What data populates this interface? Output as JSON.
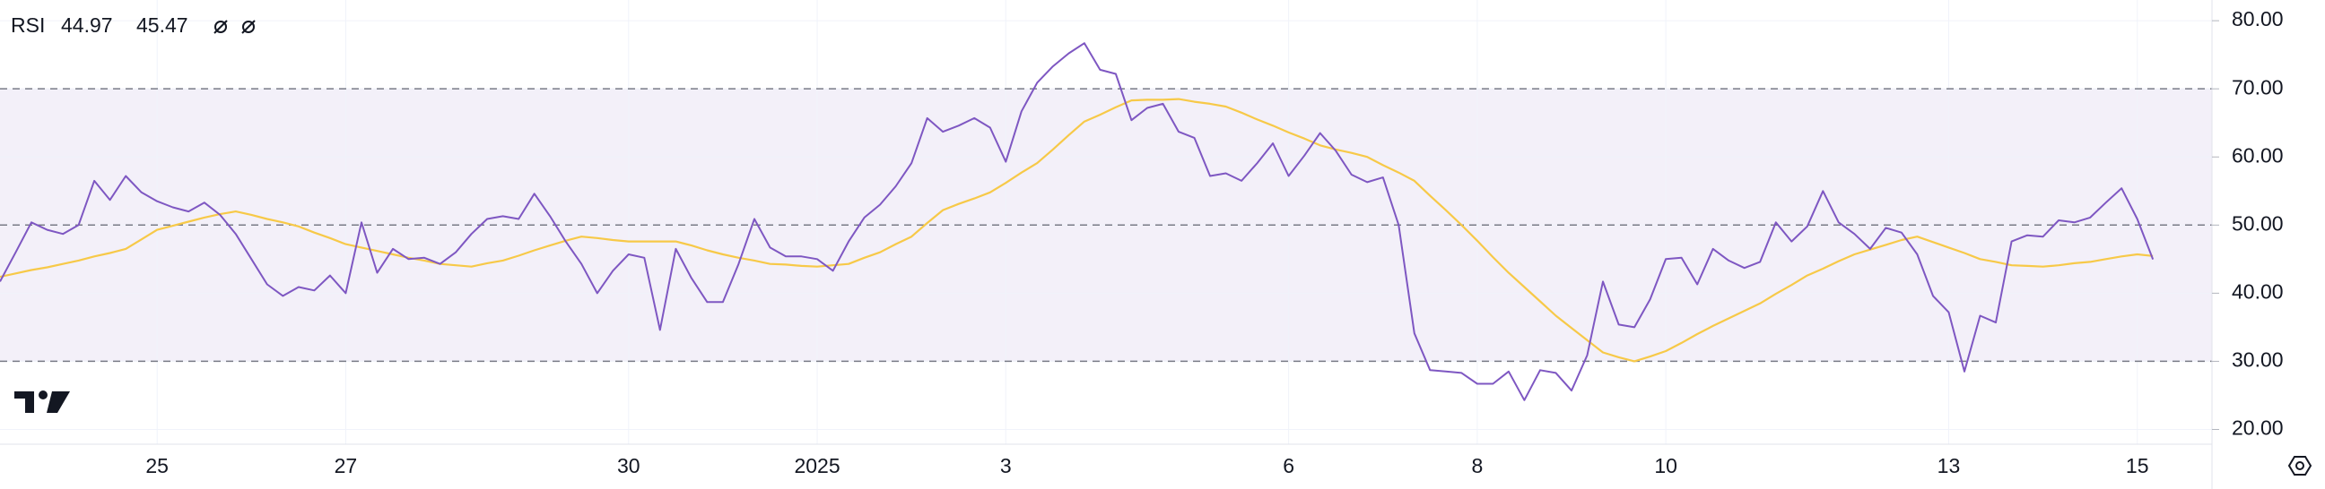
{
  "chart_data": {
    "type": "line",
    "title": "RSI",
    "categories": [
      null,
      null,
      null,
      null,
      null,
      null,
      null,
      null,
      null,
      null,
      "25",
      null,
      null,
      null,
      null,
      null,
      null,
      null,
      null,
      null,
      null,
      null,
      "27",
      null,
      null,
      null,
      null,
      null,
      null,
      null,
      null,
      null,
      null,
      null,
      null,
      null,
      null,
      null,
      null,
      null,
      "30",
      null,
      null,
      null,
      null,
      null,
      null,
      null,
      null,
      null,
      null,
      null,
      "2025",
      null,
      null,
      null,
      null,
      null,
      null,
      null,
      null,
      null,
      null,
      null,
      "3",
      null,
      null,
      null,
      null,
      null,
      null,
      null,
      null,
      null,
      null,
      null,
      null,
      null,
      null,
      null,
      null,
      null,
      "6",
      null,
      null,
      null,
      null,
      null,
      null,
      null,
      null,
      null,
      null,
      null,
      "8",
      null,
      null,
      null,
      null,
      null,
      null,
      null,
      null,
      null,
      null,
      null,
      "10",
      null,
      null,
      null,
      null,
      null,
      null,
      null,
      null,
      null,
      null,
      null,
      null,
      null,
      null,
      null,
      null,
      null,
      "13",
      null,
      null,
      null,
      null,
      null,
      null,
      null,
      null,
      null,
      null,
      null,
      "15",
      null
    ],
    "series": [
      {
        "color": "#7e57c2",
        "values": [
          41.7,
          46,
          50.4,
          49.3,
          48.7,
          50,
          56.5,
          53.7,
          57.2,
          54.8,
          53.5,
          52.6,
          52,
          53.3,
          51.5,
          48.7,
          45,
          41.3,
          39.6,
          40.9,
          40.4,
          42.6,
          40,
          50.4,
          43,
          46.5,
          45,
          45.2,
          44.3,
          46,
          48.7,
          50.9,
          51.3,
          50.9,
          54.6,
          51.3,
          47.6,
          44.3,
          40,
          43.3,
          45.7,
          45.2,
          34.6,
          46.5,
          42.2,
          38.7,
          38.7,
          44.3,
          50.9,
          46.7,
          45.4,
          45.4,
          45,
          43.3,
          47.6,
          51.1,
          53,
          55.7,
          59.1,
          65.7,
          63.7,
          64.6,
          65.7,
          64.3,
          59.3,
          66.7,
          70.9,
          73.3,
          75.2,
          76.7,
          72.8,
          72.2,
          65.4,
          67.2,
          67.8,
          63.7,
          62.8,
          57.2,
          57.6,
          56.5,
          59.1,
          62,
          57.2,
          60.2,
          63.5,
          60.9,
          57.4,
          56.3,
          57,
          50,
          34.1,
          28.7,
          28.5,
          28.3,
          26.7,
          26.7,
          28.5,
          24.3,
          28.7,
          28.3,
          25.7,
          30.9,
          41.7,
          35.4,
          35,
          39.1,
          45,
          45.2,
          41.3,
          46.5,
          44.8,
          43.7,
          44.6,
          50.4,
          47.6,
          49.8,
          55,
          50.4,
          48.7,
          46.5,
          49.6,
          48.9,
          45.7,
          39.6,
          37.2,
          28.5,
          36.7,
          35.7,
          47.6,
          48.5,
          48.3,
          50.7,
          50.4,
          51.1,
          53.3,
          55.4,
          50.9,
          44.97
        ]
      },
      {
        "color": "#f7c948",
        "values": [
          42.4,
          42.9,
          43.4,
          43.8,
          44.3,
          44.8,
          45.4,
          45.9,
          46.5,
          47.9,
          49.3,
          49.9,
          50.5,
          51.1,
          51.6,
          52,
          51.5,
          50.9,
          50.4,
          49.8,
          48.9,
          48.1,
          47.2,
          46.7,
          46.2,
          45.7,
          45.2,
          44.8,
          44.3,
          44.1,
          43.9,
          44.4,
          44.8,
          45.5,
          46.3,
          47,
          47.7,
          48.3,
          48.1,
          47.8,
          47.6,
          47.6,
          47.6,
          47.6,
          47,
          46.3,
          45.7,
          45.2,
          44.8,
          44.3,
          44.2,
          44,
          43.9,
          44.1,
          44.3,
          45.2,
          46,
          47.2,
          48.3,
          50.3,
          52.2,
          53.1,
          53.9,
          54.8,
          56.2,
          57.7,
          59.1,
          61.1,
          63.2,
          65.2,
          66.2,
          67.3,
          68.3,
          68.4,
          68.4,
          68.5,
          68.1,
          67.8,
          67.4,
          66.5,
          65.5,
          64.6,
          63.6,
          62.7,
          61.7,
          61.1,
          60.6,
          60,
          58.8,
          57.7,
          56.5,
          54.3,
          52.2,
          50,
          47.7,
          45.3,
          43,
          40.9,
          38.8,
          36.7,
          34.9,
          33.1,
          31.3,
          30.6,
          30,
          30.7,
          31.5,
          32.7,
          34,
          35.2,
          36.3,
          37.4,
          38.5,
          39.9,
          41.2,
          42.6,
          43.6,
          44.7,
          45.7,
          46.4,
          47.1,
          47.8,
          48.3,
          47.5,
          46.7,
          45.9,
          45,
          44.6,
          44.1,
          44,
          43.9,
          44.1,
          44.4,
          44.6,
          45,
          45.4,
          45.7,
          45.47
        ]
      }
    ],
    "ylim": [
      17.83,
      83.04
    ],
    "yticks": [
      {
        "value": 20,
        "label": "20.00"
      },
      {
        "value": 30,
        "label": "30.00"
      },
      {
        "value": 40,
        "label": "40.00"
      },
      {
        "value": 50,
        "label": "50.00"
      },
      {
        "value": 60,
        "label": "60.00"
      },
      {
        "value": 70,
        "label": "70.00"
      },
      {
        "value": 80,
        "label": "80.00"
      }
    ],
    "band": [
      30,
      70
    ],
    "midline": 50,
    "band_color": "#7e57c2",
    "grid": true
  }
}
